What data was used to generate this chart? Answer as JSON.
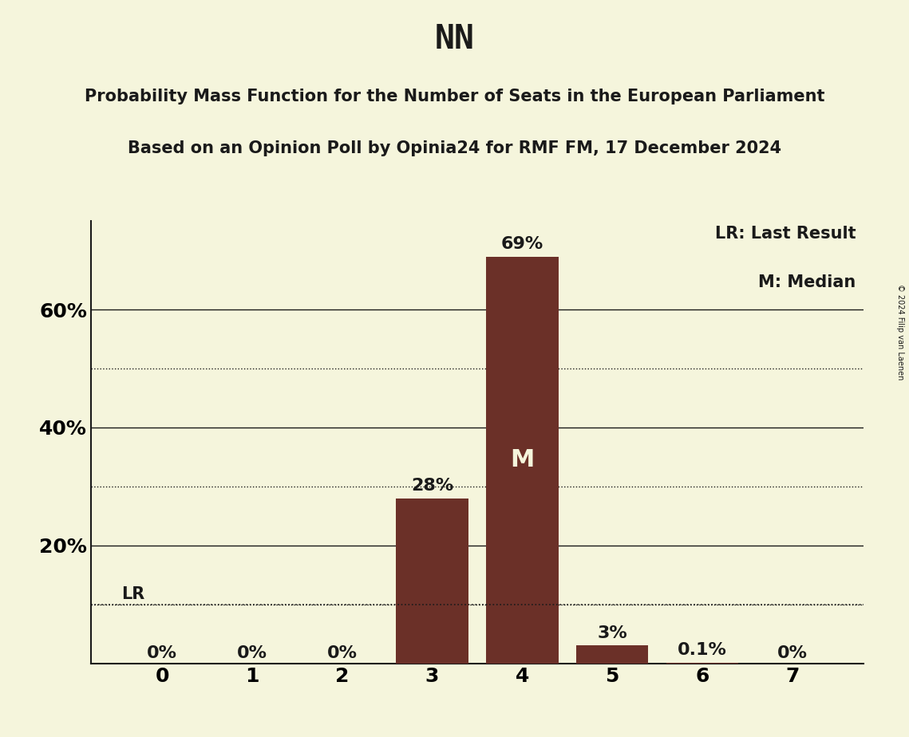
{
  "title": "NN",
  "subtitle1": "Probability Mass Function for the Number of Seats in the European Parliament",
  "subtitle2": "Based on an Opinion Poll by Opinia24 for RMF FM, 17 December 2024",
  "copyright": "© 2024 Filip van Laenen",
  "categories": [
    0,
    1,
    2,
    3,
    4,
    5,
    6,
    7
  ],
  "values": [
    0.0,
    0.0,
    0.0,
    0.28,
    0.69,
    0.03,
    0.001,
    0.0
  ],
  "bar_labels": [
    "0%",
    "0%",
    "0%",
    "28%",
    "69%",
    "3%",
    "0.1%",
    "0%"
  ],
  "bar_color": "#6b3028",
  "median_bar": 4,
  "median_label": "M",
  "lr_line": 0.1,
  "lr_label": "LR",
  "legend_text1": "LR: Last Result",
  "legend_text2": "M: Median",
  "background_color": "#f5f5dc",
  "ylim": [
    0,
    0.75
  ],
  "yticks": [
    0.0,
    0.2,
    0.4,
    0.6
  ],
  "ytick_labels": [
    "",
    "20%",
    "40%",
    "60%"
  ],
  "dotted_yticks": [
    0.1,
    0.3,
    0.5
  ],
  "title_fontsize": 30,
  "subtitle_fontsize": 15,
  "label_fontsize": 15,
  "tick_fontsize": 18,
  "bar_label_fontsize": 16,
  "legend_fontsize": 15,
  "median_fontsize": 22
}
